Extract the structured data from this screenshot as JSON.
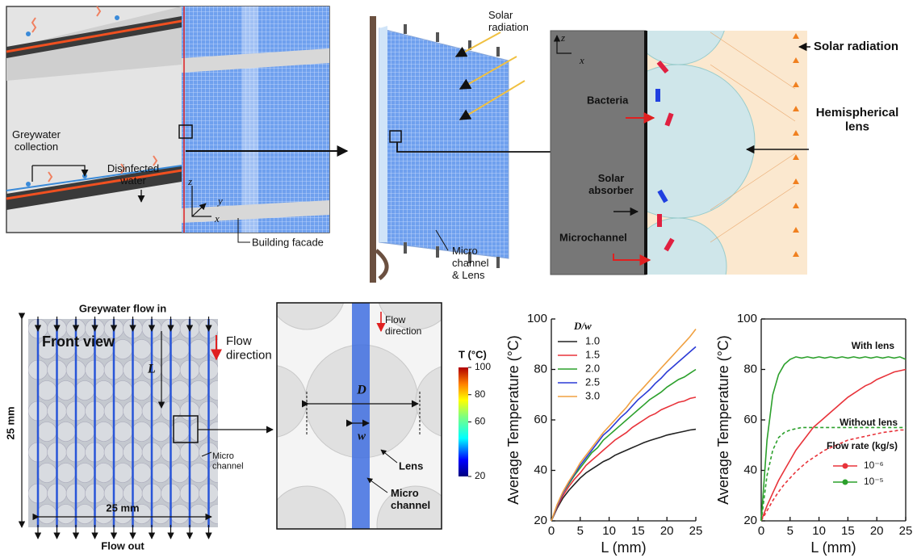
{
  "figure": {
    "building": {
      "greywater": "Greywater collection",
      "disinfected": "Disinfected water",
      "facade": "Building facade",
      "axes": [
        "z",
        "y",
        "x"
      ]
    },
    "module": {
      "solar": "Solar radiation",
      "channel": "Micro channel & Lens"
    },
    "section": {
      "axes": [
        "z",
        "x"
      ],
      "bacteria": "Bacteria",
      "absorber": "Solar absorber",
      "microchannel": "Microchannel",
      "solar": "Solar radiation",
      "lens": "Hemispherical lens"
    },
    "front": {
      "inflow": "Greywater flow in",
      "view": "Front view",
      "flow": "Flow direction",
      "length": "L",
      "height": "25 mm",
      "width": "25 mm",
      "channel": "Micro channel",
      "outflow": "Flow out"
    },
    "unit_cell": {
      "flow": "Flow direction",
      "diameter": "D",
      "width": "w",
      "lens": "Lens",
      "channel": "Micro channel"
    },
    "colorbar": {
      "label": "T (°C)",
      "lim": [
        20,
        100
      ],
      "ticks": [
        100,
        80,
        60,
        20
      ]
    }
  },
  "chart_data": [
    {
      "type": "line",
      "xlabel": "L (mm)",
      "ylabel": "Average Temperature (°C)",
      "legend_title": "D/w",
      "legend": "upper left",
      "box": false,
      "xlim": [
        0,
        25
      ],
      "ylim": [
        20,
        100
      ],
      "xticks": [
        0,
        5,
        10,
        15,
        20,
        25
      ],
      "yticks": [
        20,
        40,
        60,
        80,
        100
      ],
      "x": [
        0,
        1,
        2,
        3,
        4,
        5,
        6,
        7,
        8,
        9,
        10,
        11,
        12,
        13,
        14,
        15,
        16,
        17,
        18,
        19,
        20,
        21,
        22,
        23,
        24,
        25
      ],
      "series": [
        {
          "name": "1.0",
          "color": "#222222",
          "values": [
            20,
            25,
            29,
            32,
            34.5,
            37,
            39,
            40.5,
            42,
            43.5,
            44.5,
            46,
            47,
            48,
            49,
            50,
            51,
            51.8,
            52.5,
            53.2,
            54,
            54.5,
            55,
            55.5,
            56,
            56.3
          ]
        },
        {
          "name": "1.5",
          "color": "#e8333a",
          "values": [
            20,
            25.5,
            30,
            33.5,
            36.5,
            39,
            42,
            44,
            46,
            48,
            50,
            52,
            53.5,
            55,
            57,
            58.5,
            60,
            61.5,
            62.5,
            64,
            65,
            66,
            67,
            67.5,
            68.5,
            69
          ]
        },
        {
          "name": "2.0",
          "color": "#2ca02c",
          "values": [
            20,
            26,
            31,
            34.5,
            38,
            41,
            44,
            47,
            49,
            52,
            54,
            56,
            58,
            60,
            62,
            64,
            66,
            68,
            69.5,
            71,
            73,
            74.5,
            76,
            77,
            78.5,
            80
          ]
        },
        {
          "name": "2.5",
          "color": "#2b3bd6",
          "values": [
            20,
            26,
            31,
            35,
            38.5,
            42,
            45,
            48,
            51,
            54,
            56,
            58.5,
            61,
            63,
            65.5,
            68,
            70,
            72,
            74.5,
            76.5,
            79,
            81,
            83,
            85,
            87,
            89
          ]
        },
        {
          "name": "3.0",
          "color": "#f0a040",
          "values": [
            20,
            26.5,
            31.5,
            35.5,
            39,
            43,
            46,
            49,
            52,
            55,
            57.5,
            60,
            62.5,
            65,
            68,
            70.5,
            73,
            75.5,
            78,
            80.5,
            83,
            85.5,
            88,
            90.5,
            93,
            96
          ]
        }
      ]
    },
    {
      "type": "line",
      "xlabel": "L (mm)",
      "ylabel": "Average Temperature (°C)",
      "legend_title": "Flow rate (kg/s)",
      "legend": "lower right",
      "box": true,
      "annotations": [
        "With lens",
        "Without lens"
      ],
      "xlim": [
        0,
        25
      ],
      "ylim": [
        20,
        100
      ],
      "xticks": [
        0,
        5,
        10,
        15,
        20,
        25
      ],
      "yticks": [
        20,
        40,
        60,
        80,
        100
      ],
      "x": [
        0,
        1,
        2,
        3,
        4,
        5,
        6,
        7,
        8,
        9,
        10,
        11,
        12,
        13,
        14,
        15,
        16,
        17,
        18,
        19,
        20,
        21,
        22,
        23,
        24,
        25
      ],
      "series": [
        {
          "name": "10⁻⁶",
          "color": "#e8333a",
          "values": [
            20,
            26,
            31,
            36,
            40,
            44,
            48,
            51,
            54,
            57,
            59,
            61,
            63,
            65,
            67,
            69,
            70.5,
            72,
            73.5,
            74.5,
            76,
            77,
            78,
            79,
            79.5,
            80
          ]
        },
        {
          "name": "10⁻⁵",
          "color": "#2ca02c",
          "values": [
            20,
            52,
            70,
            78,
            82,
            84,
            85,
            84.5,
            85,
            84.5,
            85,
            84.5,
            85,
            84.5,
            85,
            84.5,
            85,
            84.5,
            85,
            84.5,
            85,
            84.5,
            85,
            84.5,
            85,
            84
          ]
        },
        {
          "color": "#e8333a",
          "dash": true,
          "values": [
            20,
            24,
            28,
            31.5,
            34.5,
            37,
            39.5,
            41.5,
            43.5,
            45,
            46.5,
            48,
            49,
            50,
            51,
            52,
            52.5,
            53,
            53.5,
            54,
            54.5,
            55,
            55.3,
            55.6,
            56,
            56
          ]
        },
        {
          "color": "#2ca02c",
          "dash": true,
          "values": [
            20,
            38,
            48,
            53,
            55,
            56,
            56.5,
            57,
            57,
            57,
            57,
            57,
            57,
            57,
            57,
            57,
            57,
            57,
            57,
            57,
            57,
            57,
            57,
            57,
            57,
            57
          ]
        }
      ]
    }
  ]
}
